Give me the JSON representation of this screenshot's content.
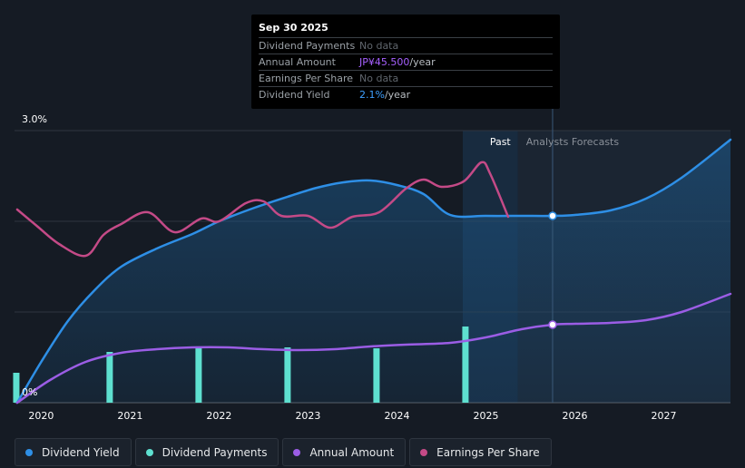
{
  "tooltip": {
    "date": "Sep 30 2025",
    "rows": [
      {
        "label": "Dividend Payments",
        "value": "No data",
        "unit": ""
      },
      {
        "label": "Annual Amount",
        "value": "JP¥45.500",
        "unit": "/year"
      },
      {
        "label": "Earnings Per Share",
        "value": "No data",
        "unit": ""
      },
      {
        "label": "Dividend Yield",
        "value": "2.1%",
        "unit": "/year"
      }
    ]
  },
  "legend": [
    {
      "label": "Dividend Yield",
      "color": "#2e8fe6"
    },
    {
      "label": "Dividend Payments",
      "color": "#5ee0d0"
    },
    {
      "label": "Annual Amount",
      "color": "#9b5de5"
    },
    {
      "label": "Earnings Per Share",
      "color": "#c44a87"
    }
  ],
  "chart_data": {
    "type": "line",
    "y_axis": {
      "min": 0,
      "max": 3.0,
      "unit": "%",
      "labels": [
        "3.0%",
        "0%"
      ]
    },
    "x_axis": {
      "min": 2019.7,
      "max": 2027.75,
      "ticks": [
        "2020",
        "2021",
        "2022",
        "2023",
        "2024",
        "2025",
        "2026",
        "2027"
      ]
    },
    "past_label": "Past",
    "forecast_label": "Analysts Forecasts",
    "past_start": 2024.74,
    "forecast_start": 2025.36,
    "cursor_x": 2025.75,
    "series": [
      {
        "name": "Dividend Yield",
        "color": "#2e8fe6",
        "unit": "%",
        "points": [
          [
            2019.73,
            0
          ],
          [
            2020.0,
            0.45
          ],
          [
            2020.3,
            0.9
          ],
          [
            2020.6,
            1.24
          ],
          [
            2020.9,
            1.5
          ],
          [
            2021.3,
            1.7
          ],
          [
            2021.7,
            1.86
          ],
          [
            2022.0,
            2.0
          ],
          [
            2022.4,
            2.15
          ],
          [
            2022.8,
            2.28
          ],
          [
            2023.1,
            2.37
          ],
          [
            2023.4,
            2.43
          ],
          [
            2023.7,
            2.45
          ],
          [
            2024.0,
            2.4
          ],
          [
            2024.3,
            2.3
          ],
          [
            2024.6,
            2.07
          ],
          [
            2025.0,
            2.06
          ],
          [
            2025.4,
            2.06
          ],
          [
            2025.75,
            2.06
          ],
          [
            2026.0,
            2.07
          ],
          [
            2026.4,
            2.12
          ],
          [
            2026.8,
            2.25
          ],
          [
            2027.2,
            2.48
          ],
          [
            2027.75,
            2.9
          ]
        ]
      },
      {
        "name": "Earnings Per Share",
        "color": "#c44a87",
        "unit": "",
        "points": [
          [
            2019.73,
            2.13
          ],
          [
            2019.95,
            1.95
          ],
          [
            2020.2,
            1.75
          ],
          [
            2020.5,
            1.62
          ],
          [
            2020.7,
            1.85
          ],
          [
            2020.9,
            1.97
          ],
          [
            2021.2,
            2.1
          ],
          [
            2021.5,
            1.88
          ],
          [
            2021.8,
            2.03
          ],
          [
            2022.0,
            2.0
          ],
          [
            2022.3,
            2.2
          ],
          [
            2022.5,
            2.22
          ],
          [
            2022.7,
            2.06
          ],
          [
            2023.0,
            2.06
          ],
          [
            2023.25,
            1.93
          ],
          [
            2023.5,
            2.05
          ],
          [
            2023.8,
            2.1
          ],
          [
            2024.1,
            2.36
          ],
          [
            2024.3,
            2.46
          ],
          [
            2024.5,
            2.38
          ],
          [
            2024.75,
            2.44
          ],
          [
            2024.95,
            2.65
          ],
          [
            2025.05,
            2.52
          ],
          [
            2025.25,
            2.05
          ]
        ]
      },
      {
        "name": "Annual Amount",
        "color": "#9b5de5",
        "unit": "JP¥",
        "points": [
          [
            2019.73,
            0
          ],
          [
            2020.1,
            0.25
          ],
          [
            2020.5,
            0.45
          ],
          [
            2020.9,
            0.55
          ],
          [
            2021.3,
            0.59
          ],
          [
            2021.7,
            0.61
          ],
          [
            2022.1,
            0.61
          ],
          [
            2022.5,
            0.59
          ],
          [
            2022.9,
            0.58
          ],
          [
            2023.3,
            0.59
          ],
          [
            2023.7,
            0.62
          ],
          [
            2024.1,
            0.64
          ],
          [
            2024.6,
            0.66
          ],
          [
            2025.0,
            0.72
          ],
          [
            2025.4,
            0.81
          ],
          [
            2025.75,
            0.86
          ],
          [
            2026.0,
            0.87
          ],
          [
            2026.4,
            0.88
          ],
          [
            2026.8,
            0.91
          ],
          [
            2027.2,
            1.0
          ],
          [
            2027.75,
            1.2
          ]
        ]
      }
    ],
    "bars": {
      "name": "Dividend Payments",
      "color": "#5ee0d0",
      "points": [
        [
          2019.72,
          0.33
        ],
        [
          2020.77,
          0.56
        ],
        [
          2021.77,
          0.6
        ],
        [
          2022.77,
          0.61
        ],
        [
          2023.77,
          0.6
        ],
        [
          2024.77,
          0.84
        ]
      ]
    },
    "markers": [
      {
        "series": "Dividend Yield",
        "x": 2025.75,
        "y": 2.06
      },
      {
        "series": "Annual Amount",
        "x": 2025.75,
        "y": 0.86
      }
    ]
  }
}
